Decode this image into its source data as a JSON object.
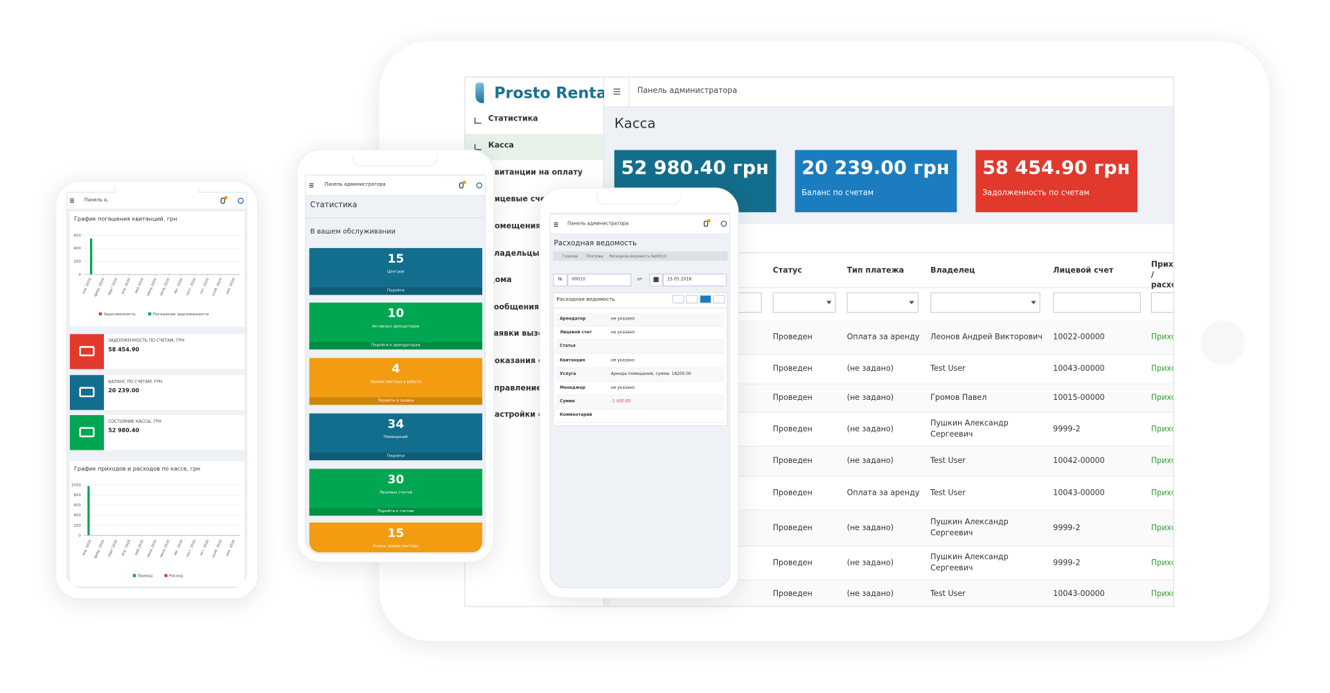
{
  "tablet": {
    "logo": "Prosto Renta",
    "topbar": "Панель администратора",
    "menu": [
      "Статистика",
      "Касса",
      "Квитанции на оплату",
      "Лицевые счета",
      "Помещения",
      "Владельцы квартир",
      "Дома",
      "Сообщения",
      "Заявки вызова мастера",
      "Показания счетчиков",
      "Управление счетчиками",
      "Настройки системы"
    ],
    "page_title": "Касса",
    "cards": [
      {
        "value": "52 980.40 грн",
        "color": "#136d8c"
      },
      {
        "value": "20 239.00 грн",
        "label": "Баланс по счетам",
        "color": "#1b7dc0"
      },
      {
        "value": "58 454.90 грн",
        "label": "Задолженность по счетам",
        "color": "#e2392d"
      }
    ],
    "table": {
      "headers": [
        "Статус",
        "Тип платежа",
        "Владелец",
        "Лицевой счет",
        "Приход / расход"
      ],
      "rows": [
        [
          "Проведен",
          "Оплата за аренду",
          "Леонов Андрей Викторович",
          "10022-00000",
          "Приход"
        ],
        [
          "Проведен",
          "(не задано)",
          "Test User",
          "10043-00000",
          "Приход"
        ],
        [
          "Проведен",
          "(не задано)",
          "Громов Павел",
          "10015-00000",
          "Приход"
        ],
        [
          "Проведен",
          "(не задано)",
          "Пушкин Александр Сергеевич",
          "9999-2",
          "Приход"
        ],
        [
          "Проведен",
          "(не задано)",
          "Test User",
          "10042-00000",
          "Приход"
        ],
        [
          "Проведен",
          "Оплата за аренду",
          "Test User",
          "10043-00000",
          "Приход"
        ],
        [
          "Проведен",
          "(не задано)",
          "Пушкин Александр Сергеевич",
          "9999-2",
          "Приход"
        ],
        [
          "Проведен",
          "(не задано)",
          "Пушкин Александр Сергеевич",
          "9999-2",
          "Приход"
        ],
        [
          "Проведен",
          "(не задано)",
          "Test User",
          "10043-00000",
          "Приход"
        ]
      ]
    }
  },
  "phone1": {
    "topbar": "Панель а,",
    "charts": [
      {
        "title": "График погашения квитанций, грн",
        "categories": [
          "янв. 2020",
          "февр. 2020",
          "март 2020",
          "апр. 2020",
          "май 2020",
          "июнь 2020",
          "июль 2020",
          "авг. 2020",
          "сент. 2020",
          "окт. 2020",
          "нояб. 2020",
          "дек. 2020"
        ],
        "ylim": [
          0,
          600
        ],
        "yticks": [
          0,
          200,
          400,
          600
        ],
        "series": [
          {
            "name": "Задолженность",
            "color": "#e2392d",
            "values": [
              0,
              0,
              0,
              0,
              0,
              0,
              0,
              0,
              0,
              0,
              0,
              0
            ]
          },
          {
            "name": "Погашение задолженности",
            "color": "#00a651",
            "values": [
              550,
              0,
              0,
              0,
              0,
              0,
              0,
              0,
              0,
              0,
              0,
              0
            ]
          }
        ]
      },
      {
        "title": "График приходов и расходов по кассе, грн",
        "categories": [
          "янв. 2020",
          "февр. 2020",
          "март 2020",
          "апр. 2020",
          "май 2020",
          "июнь 2020",
          "июль 2020",
          "авг. 2020",
          "сент. 2020",
          "окт. 2020",
          "нояб. 2020",
          "дек. 2020"
        ],
        "ylim": [
          0,
          1000
        ],
        "yticks": [
          0,
          200,
          400,
          600,
          800,
          1000
        ],
        "series": [
          {
            "name": "Приход",
            "color": "#00a651",
            "values": [
              980,
              0,
              0,
              0,
              0,
              0,
              0,
              0,
              0,
              0,
              0,
              0
            ]
          },
          {
            "name": "Расход",
            "color": "#e2392d",
            "values": [
              0,
              0,
              0,
              0,
              0,
              0,
              0,
              0,
              0,
              0,
              0,
              0
            ]
          }
        ]
      }
    ],
    "stats": [
      {
        "label": "ЗАДОЛЖЕННОСТЬ ПО СЧЕТАМ, ГРН",
        "value": "58 454.90",
        "color": "#e2392d"
      },
      {
        "label": "БАЛАНС ПО СЧЕТАМ, ГРН",
        "value": "20 239.00",
        "color": "#136d8c"
      },
      {
        "label": "СОСТОЯНИЕ КАССЫ, ГРН",
        "value": "52 980.40",
        "color": "#00a651"
      }
    ]
  },
  "phone2": {
    "topbar": "Панель администратора",
    "title": "Статистика",
    "subtitle": "В вашем обслуживании",
    "tiles": [
      {
        "value": 15,
        "label": "Центров",
        "link": "Перейти",
        "color": "#136d8c"
      },
      {
        "value": 10,
        "label": "Активных арендаторов",
        "link": "Перейти к арендаторам",
        "color": "#00a651"
      },
      {
        "value": 4,
        "label": "Заявок мастера в работе",
        "link": "Перейти в заявки",
        "color": "#f39c12"
      },
      {
        "value": 34,
        "label": "Помещений",
        "link": "Перейти",
        "color": "#136d8c"
      },
      {
        "value": 30,
        "label": "Лицевых счетов",
        "link": "Перейти к счетам",
        "color": "#00a651"
      },
      {
        "value": 15,
        "label": "Новых заявок мастера",
        "color": "#f39c12"
      }
    ]
  },
  "phone3": {
    "topbar": "Панель администратора",
    "title": "Расходная ведомость",
    "breadcrumb": [
      "Главная",
      "Платежи",
      "Расходная ведомость №00010"
    ],
    "number_label": "№",
    "number": "00010",
    "date_label": "от",
    "date": "15.05.2018",
    "panel_title": "Расходная ведомость",
    "fields": [
      {
        "label": "Арендатор",
        "value": "не указано"
      },
      {
        "label": "Лицевой счет",
        "value": "не указано"
      },
      {
        "label": "Статья"
      },
      {
        "label": "Квитанция",
        "value": "не указано"
      },
      {
        "label": "Услуга",
        "value": "Аренда помещения, сумма: 18200.00"
      },
      {
        "label": "Менеджер",
        "value": "не указано"
      },
      {
        "label": "Сумма",
        "value": "-1 400.00"
      },
      {
        "label": "Комментарий"
      }
    ]
  }
}
